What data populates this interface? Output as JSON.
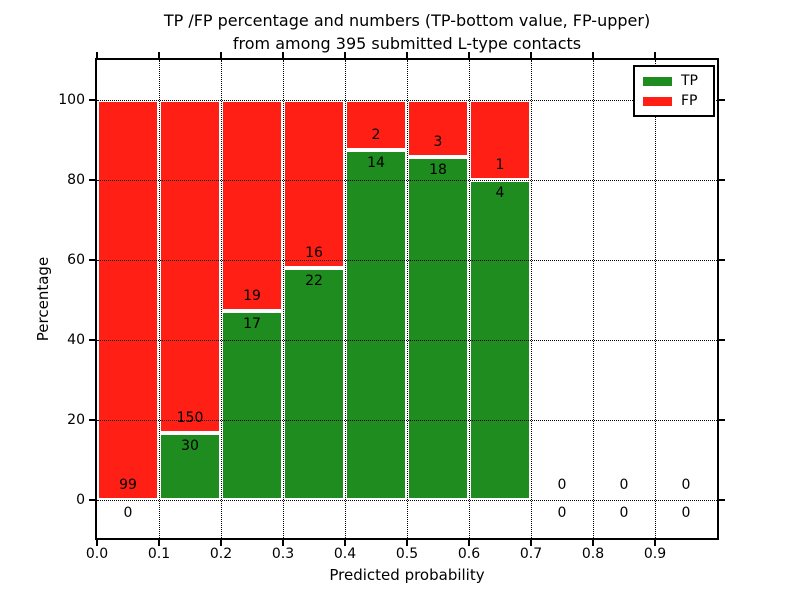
{
  "chart_data": {
    "type": "bar",
    "stacked": true,
    "title_line1": "TP /FP percentage and numbers (TP-bottom value, FP-upper)",
    "title_line2": "from among 395 submitted L-type contacts",
    "xlabel": "Predicted probability",
    "ylabel": "Percentage",
    "total_contacts": 395,
    "x_tick_labels": [
      "0.0",
      "0.1",
      "0.2",
      "0.3",
      "0.4",
      "0.5",
      "0.6",
      "0.7",
      "0.8",
      "0.9"
    ],
    "y_tick_labels": [
      "0",
      "20",
      "40",
      "60",
      "80",
      "100"
    ],
    "y_tick_values": [
      0,
      20,
      40,
      60,
      80,
      100
    ],
    "xlim": [
      0.0,
      1.0
    ],
    "ylim": [
      -9.5,
      109.5
    ],
    "grid": "dotted",
    "legend": [
      {
        "label": "TP",
        "color": "#1e8c1e"
      },
      {
        "label": "FP",
        "color": "#ff1f14"
      }
    ],
    "colors": {
      "tp": "#1e8c1e",
      "fp": "#ff1f14",
      "bar_edge": "#ffffff"
    },
    "bins": [
      {
        "x0": 0.0,
        "x1": 0.1,
        "tp": 0,
        "fp": 99
      },
      {
        "x0": 0.1,
        "x1": 0.2,
        "tp": 30,
        "fp": 150
      },
      {
        "x0": 0.2,
        "x1": 0.3,
        "tp": 17,
        "fp": 19
      },
      {
        "x0": 0.3,
        "x1": 0.4,
        "tp": 22,
        "fp": 16
      },
      {
        "x0": 0.4,
        "x1": 0.5,
        "tp": 14,
        "fp": 2
      },
      {
        "x0": 0.5,
        "x1": 0.6,
        "tp": 18,
        "fp": 3
      },
      {
        "x0": 0.6,
        "x1": 0.7,
        "tp": 4,
        "fp": 1
      },
      {
        "x0": 0.7,
        "x1": 0.8,
        "tp": 0,
        "fp": 0
      },
      {
        "x0": 0.8,
        "x1": 0.9,
        "tp": 0,
        "fp": 0
      },
      {
        "x0": 0.9,
        "x1": 1.0,
        "tp": 0,
        "fp": 0
      }
    ]
  }
}
